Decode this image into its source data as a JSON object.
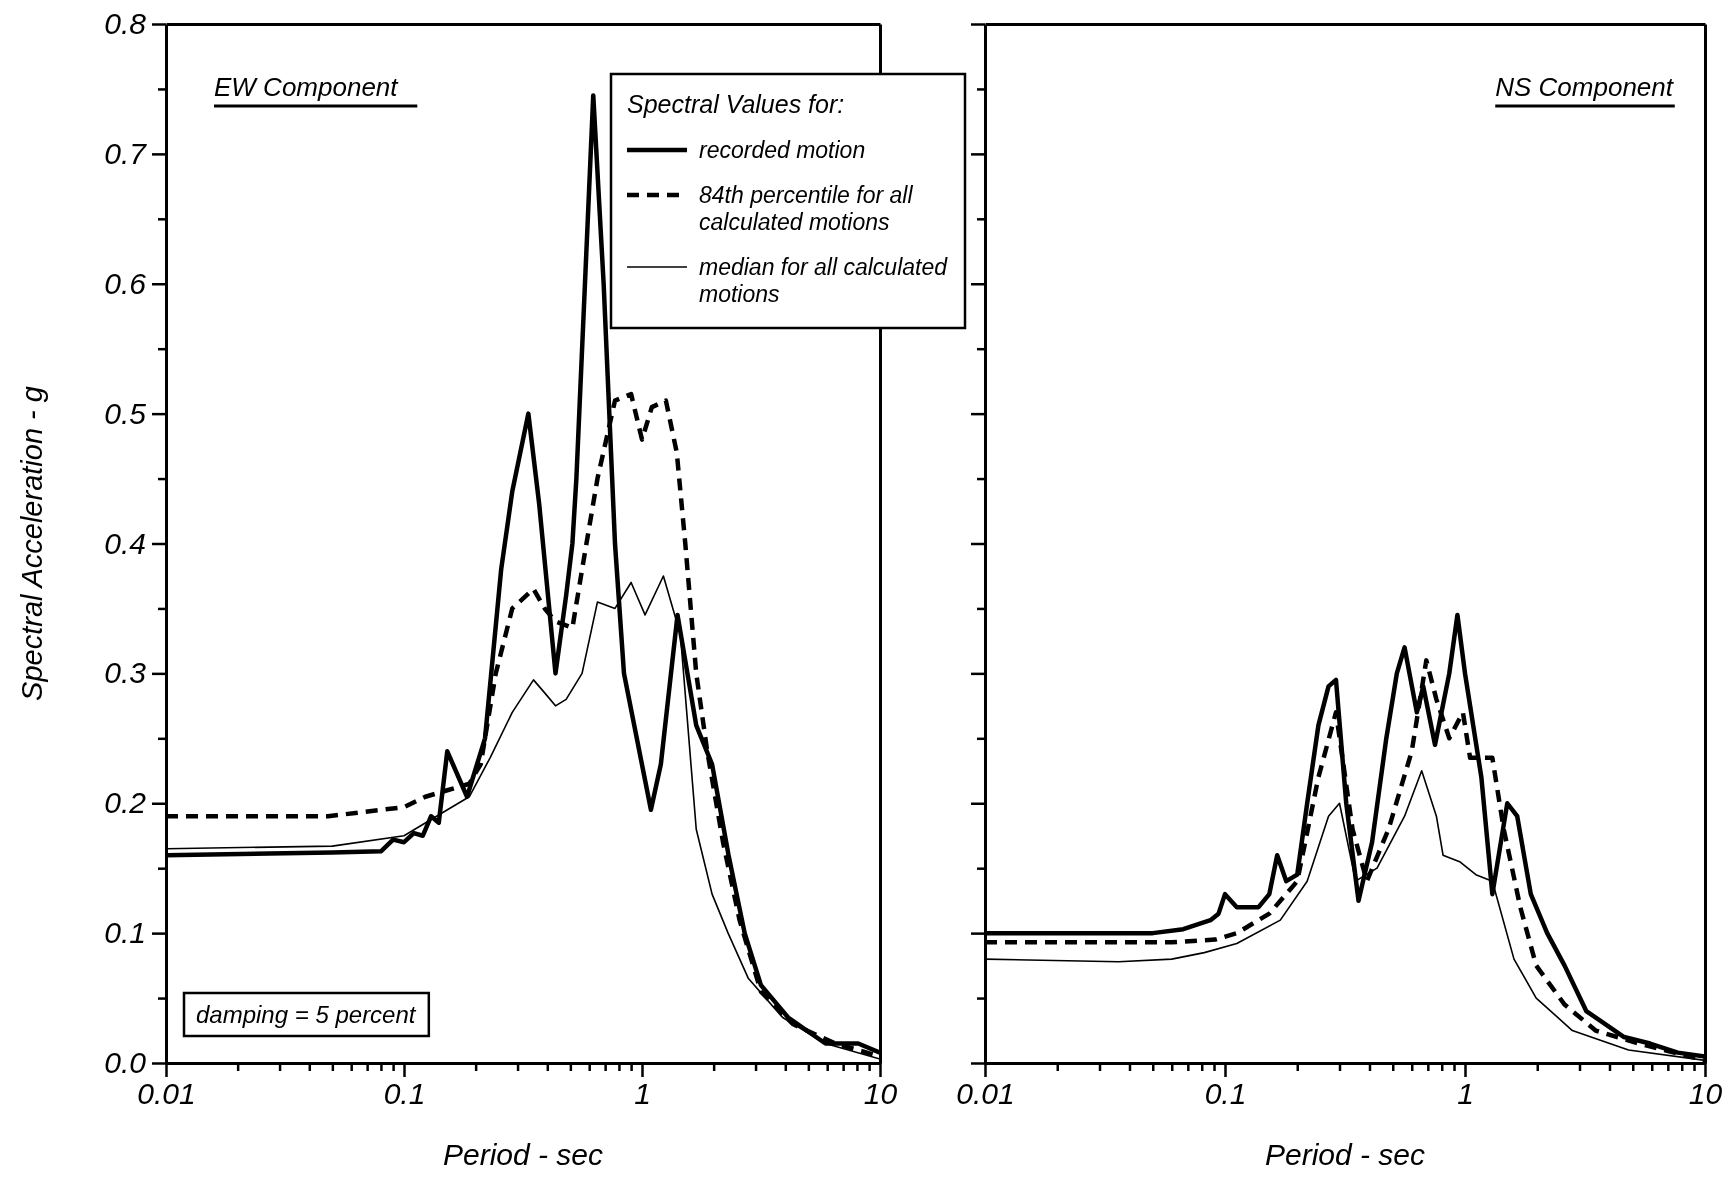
{
  "chart_data": [
    {
      "type": "line",
      "xlabel": "Period - sec",
      "ylabel": "Spectral Acceleration - g",
      "legend_title": "Spectral Values for:",
      "legend": "top right",
      "log": "x",
      "annotations": [
        "EW Component",
        "damping = 5 percent"
      ],
      "xlim": [
        0.01,
        10
      ],
      "ylim": [
        0,
        0.8
      ],
      "xticks": [
        0.01,
        {
          "value": 0.02,
          "label": null
        },
        {
          "value": 0.03,
          "label": null
        },
        {
          "value": 0.04,
          "label": null
        },
        {
          "value": 0.05,
          "label": null
        },
        {
          "value": 0.06,
          "label": null
        },
        {
          "value": 0.07,
          "label": null
        },
        {
          "value": 0.08,
          "label": null
        },
        {
          "value": 0.09,
          "label": null
        },
        0.1,
        {
          "value": 0.2,
          "label": null
        },
        {
          "value": 0.3,
          "label": null
        },
        {
          "value": 0.4,
          "label": null
        },
        {
          "value": 0.5,
          "label": null
        },
        {
          "value": 0.6,
          "label": null
        },
        {
          "value": 0.7,
          "label": null
        },
        {
          "value": 0.8,
          "label": null
        },
        {
          "value": 0.9,
          "label": null
        },
        1,
        {
          "value": 2,
          "label": null
        },
        {
          "value": 3,
          "label": null
        },
        {
          "value": 4,
          "label": null
        },
        {
          "value": 5,
          "label": null
        },
        {
          "value": 6,
          "label": null
        },
        {
          "value": 7,
          "label": null
        },
        {
          "value": 8,
          "label": null
        },
        {
          "value": 9,
          "label": null
        },
        10
      ],
      "yticks": [
        {
          "value": 0,
          "label": "0.0"
        },
        {
          "value": 0.05,
          "label": null
        },
        0.1,
        {
          "value": 0.15,
          "label": null
        },
        0.2,
        {
          "value": 0.25,
          "label": null
        },
        0.3,
        {
          "value": 0.35,
          "label": null
        },
        0.4,
        {
          "value": 0.45,
          "label": null
        },
        0.5,
        {
          "value": 0.55,
          "label": null
        },
        0.6,
        {
          "value": 0.65,
          "label": null
        },
        0.7,
        {
          "value": 0.75,
          "label": null
        },
        0.8
      ],
      "series": [
        {
          "name": "recorded motion",
          "color": "#000000",
          "line_style": "solid",
          "x": [
            0.01,
            0.05,
            0.08,
            0.09,
            0.1,
            0.11,
            0.12,
            0.13,
            0.14,
            0.152,
            0.184,
            0.219,
            0.256,
            0.285,
            0.333,
            0.37,
            0.433,
            0.48,
            0.51,
            0.53,
            0.624,
            0.69,
            0.77,
            0.84,
            1.09,
            1.2,
            1.41,
            1.69,
            1.97,
            2.31,
            2.7,
            3.16,
            4.11,
            5.9,
            8.1,
            10
          ],
          "values": [
            0.16,
            0.162,
            0.163,
            0.172,
            0.17,
            0.177,
            0.175,
            0.19,
            0.185,
            0.24,
            0.205,
            0.25,
            0.38,
            0.44,
            0.5,
            0.43,
            0.3,
            0.36,
            0.4,
            0.45,
            0.745,
            0.6,
            0.4,
            0.3,
            0.195,
            0.23,
            0.345,
            0.26,
            0.23,
            0.16,
            0.1,
            0.06,
            0.035,
            0.015,
            0.015,
            0.008
          ]
        },
        {
          "name": "84th percentile for all calculated motions",
          "color": "#000000",
          "line_style": "dashed",
          "x": [
            0.01,
            0.048,
            0.1,
            0.123,
            0.152,
            0.188,
            0.21,
            0.243,
            0.285,
            0.35,
            0.39,
            0.433,
            0.51,
            0.56,
            0.65,
            0.77,
            0.9,
            1.0,
            1.1,
            1.26,
            1.4,
            1.52,
            1.69,
            1.88,
            2.19,
            2.57,
            3.16,
            4.3,
            6.5,
            10
          ],
          "values": [
            0.19,
            0.19,
            0.197,
            0.205,
            0.21,
            0.215,
            0.23,
            0.3,
            0.35,
            0.365,
            0.35,
            0.34,
            0.335,
            0.38,
            0.45,
            0.51,
            0.515,
            0.48,
            0.505,
            0.51,
            0.47,
            0.4,
            0.3,
            0.24,
            0.17,
            0.11,
            0.055,
            0.03,
            0.015,
            0.005
          ]
        },
        {
          "name": "median for all calculated motions",
          "color": "#000000",
          "line_style": "solid",
          "x": [
            0.01,
            0.05,
            0.1,
            0.137,
            0.188,
            0.23,
            0.285,
            0.35,
            0.39,
            0.433,
            0.48,
            0.56,
            0.65,
            0.77,
            0.9,
            1.03,
            1.23,
            1.45,
            1.69,
            1.97,
            2.3,
            2.8,
            3.9,
            5.9,
            10
          ],
          "values": [
            0.165,
            0.167,
            0.175,
            0.19,
            0.205,
            0.235,
            0.27,
            0.295,
            0.285,
            0.275,
            0.28,
            0.3,
            0.355,
            0.35,
            0.37,
            0.345,
            0.375,
            0.33,
            0.18,
            0.13,
            0.1,
            0.065,
            0.035,
            0.015,
            0.003
          ]
        }
      ]
    },
    {
      "type": "line",
      "xlabel": "Period - sec",
      "log": "x",
      "tick_labels": "x",
      "annotations": [
        "NS Component"
      ],
      "xlim": [
        0.01,
        10
      ],
      "ylim": [
        0,
        0.8
      ],
      "xticks": [
        0.01,
        {
          "value": 0.02,
          "label": null
        },
        {
          "value": 0.03,
          "label": null
        },
        {
          "value": 0.04,
          "label": null
        },
        {
          "value": 0.05,
          "label": null
        },
        {
          "value": 0.06,
          "label": null
        },
        {
          "value": 0.07,
          "label": null
        },
        {
          "value": 0.08,
          "label": null
        },
        {
          "value": 0.09,
          "label": null
        },
        0.1,
        {
          "value": 0.2,
          "label": null
        },
        {
          "value": 0.3,
          "label": null
        },
        {
          "value": 0.4,
          "label": null
        },
        {
          "value": 0.5,
          "label": null
        },
        {
          "value": 0.6,
          "label": null
        },
        {
          "value": 0.7,
          "label": null
        },
        {
          "value": 0.8,
          "label": null
        },
        {
          "value": 0.9,
          "label": null
        },
        1,
        {
          "value": 2,
          "label": null
        },
        {
          "value": 3,
          "label": null
        },
        {
          "value": 4,
          "label": null
        },
        {
          "value": 5,
          "label": null
        },
        {
          "value": 6,
          "label": null
        },
        {
          "value": 7,
          "label": null
        },
        {
          "value": 8,
          "label": null
        },
        {
          "value": 9,
          "label": null
        },
        10
      ],
      "yticks": [
        0,
        {
          "value": 0.05,
          "label": null
        },
        0.1,
        {
          "value": 0.15,
          "label": null
        },
        0.2,
        {
          "value": 0.25,
          "label": null
        },
        0.3,
        {
          "value": 0.35,
          "label": null
        },
        0.4,
        {
          "value": 0.45,
          "label": null
        },
        0.5,
        {
          "value": 0.55,
          "label": null
        },
        0.6,
        {
          "value": 0.65,
          "label": null
        },
        0.7,
        {
          "value": 0.75,
          "label": null
        },
        0.8
      ],
      "series": [
        {
          "color": "#000000",
          "line_style": "solid",
          "x": [
            0.01,
            0.05,
            0.067,
            0.087,
            0.094,
            0.1,
            0.112,
            0.138,
            0.153,
            0.165,
            0.18,
            0.2,
            0.22,
            0.245,
            0.27,
            0.29,
            0.32,
            0.36,
            0.41,
            0.47,
            0.52,
            0.56,
            0.63,
            0.67,
            0.75,
            0.86,
            0.93,
            1.0,
            1.17,
            1.3,
            1.5,
            1.65,
            1.88,
            2.2,
            2.6,
            3.2,
            4.6,
            5.9,
            7.7,
            10
          ],
          "values": [
            0.1,
            0.1,
            0.103,
            0.11,
            0.115,
            0.13,
            0.12,
            0.12,
            0.13,
            0.16,
            0.14,
            0.145,
            0.2,
            0.26,
            0.29,
            0.295,
            0.2,
            0.125,
            0.17,
            0.25,
            0.3,
            0.32,
            0.27,
            0.29,
            0.245,
            0.3,
            0.345,
            0.3,
            0.22,
            0.13,
            0.2,
            0.19,
            0.13,
            0.1,
            0.075,
            0.04,
            0.02,
            0.015,
            0.008,
            0.005
          ]
        },
        {
          "color": "#000000",
          "line_style": "dashed",
          "x": [
            0.01,
            0.06,
            0.091,
            0.112,
            0.153,
            0.2,
            0.245,
            0.29,
            0.34,
            0.39,
            0.48,
            0.6,
            0.69,
            0.76,
            0.86,
            0.98,
            1.05,
            1.3,
            1.45,
            1.7,
            1.98,
            2.6,
            3.5,
            5.3,
            10
          ],
          "values": [
            0.093,
            0.093,
            0.095,
            0.1,
            0.115,
            0.14,
            0.22,
            0.27,
            0.18,
            0.14,
            0.18,
            0.24,
            0.31,
            0.28,
            0.25,
            0.27,
            0.235,
            0.235,
            0.18,
            0.12,
            0.075,
            0.045,
            0.025,
            0.015,
            0.002
          ]
        },
        {
          "color": "#000000",
          "line_style": "solid",
          "x": [
            0.01,
            0.036,
            0.06,
            0.082,
            0.112,
            0.17,
            0.22,
            0.27,
            0.3,
            0.35,
            0.43,
            0.56,
            0.66,
            0.76,
            0.81,
            0.95,
            1.11,
            1.3,
            1.6,
            1.98,
            2.8,
            4.8,
            10
          ],
          "values": [
            0.08,
            0.078,
            0.08,
            0.085,
            0.092,
            0.11,
            0.14,
            0.19,
            0.2,
            0.14,
            0.15,
            0.19,
            0.225,
            0.19,
            0.16,
            0.155,
            0.145,
            0.14,
            0.08,
            0.05,
            0.025,
            0.01,
            0.002
          ]
        }
      ]
    }
  ]
}
